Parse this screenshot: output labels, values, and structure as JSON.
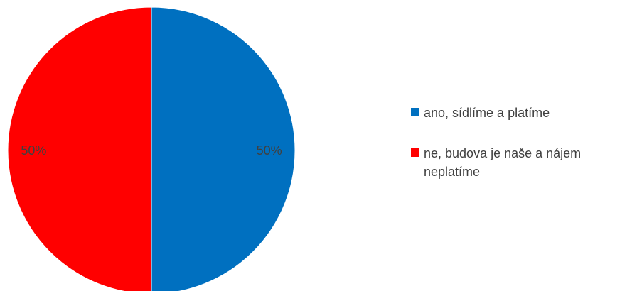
{
  "chart_data": {
    "type": "pie",
    "title": "",
    "categories": [
      "ano, sídlíme a platíme",
      "ne, budova je naše a nájem neplatíme"
    ],
    "values": [
      50,
      50
    ],
    "value_labels": [
      "50%",
      "50%"
    ],
    "colors": [
      "#0070C0",
      "#FF0000"
    ],
    "legend_position": "right",
    "start_angle": "12 o'clock, clockwise"
  }
}
